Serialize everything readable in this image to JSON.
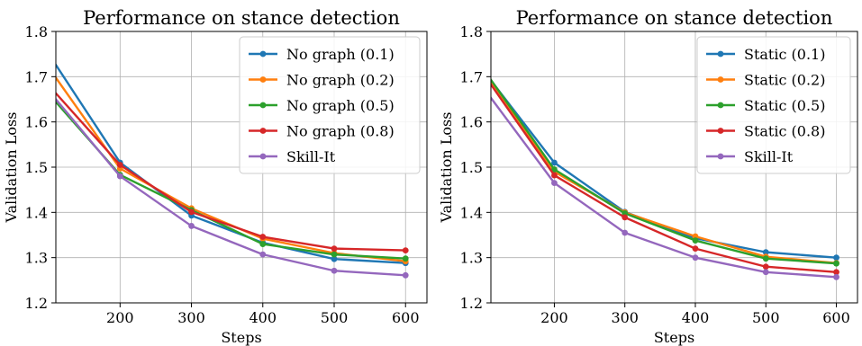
{
  "colors": {
    "blue": "#1f77b4",
    "orange": "#ff7f0e",
    "green": "#2ca02c",
    "red": "#d62728",
    "purple": "#9467bd"
  },
  "chart_data": [
    {
      "type": "line",
      "title": "Performance on stance detection",
      "xlabel": "Steps",
      "ylabel": "Validation Loss",
      "xlim": [
        110,
        630
      ],
      "ylim": [
        1.2,
        1.8
      ],
      "xticks": [
        200,
        300,
        400,
        500,
        600
      ],
      "yticks": [
        1.2,
        1.3,
        1.4,
        1.5,
        1.6,
        1.7,
        1.8
      ],
      "grid": true,
      "legend_position": "top-right",
      "x": [
        100,
        200,
        300,
        400,
        500,
        600
      ],
      "series": [
        {
          "name": "No graph (0.1)",
          "color": "#1f77b4",
          "values": [
            1.75,
            1.51,
            1.393,
            1.333,
            1.297,
            1.288
          ]
        },
        {
          "name": "No graph (0.2)",
          "color": "#ff7f0e",
          "values": [
            1.72,
            1.497,
            1.409,
            1.342,
            1.31,
            1.292
          ]
        },
        {
          "name": "No graph (0.5)",
          "color": "#2ca02c",
          "values": [
            1.662,
            1.483,
            1.405,
            1.33,
            1.307,
            1.298
          ]
        },
        {
          "name": "No graph (0.8)",
          "color": "#d62728",
          "values": [
            1.681,
            1.505,
            1.401,
            1.346,
            1.32,
            1.316
          ]
        },
        {
          "name": "Skill-It",
          "color": "#9467bd",
          "values": [
            1.669,
            1.48,
            1.37,
            1.307,
            1.271,
            1.261
          ]
        }
      ]
    },
    {
      "type": "line",
      "title": "Performance on stance detection",
      "xlabel": "Steps",
      "ylabel": "Validation Loss",
      "xlim": [
        110,
        630
      ],
      "ylim": [
        1.2,
        1.8
      ],
      "xticks": [
        200,
        300,
        400,
        500,
        600
      ],
      "yticks": [
        1.2,
        1.3,
        1.4,
        1.5,
        1.6,
        1.7,
        1.8
      ],
      "grid": true,
      "legend_position": "top-right",
      "x": [
        100,
        200,
        300,
        400,
        500,
        600
      ],
      "series": [
        {
          "name": "Static (0.1)",
          "color": "#1f77b4",
          "values": [
            1.712,
            1.51,
            1.401,
            1.343,
            1.312,
            1.3
          ]
        },
        {
          "name": "Static (0.2)",
          "color": "#ff7f0e",
          "values": [
            1.71,
            1.49,
            1.4,
            1.347,
            1.302,
            1.288
          ]
        },
        {
          "name": "Static (0.5)",
          "color": "#2ca02c",
          "values": [
            1.715,
            1.495,
            1.398,
            1.338,
            1.298,
            1.287
          ]
        },
        {
          "name": "Static (0.8)",
          "color": "#d62728",
          "values": [
            1.705,
            1.482,
            1.389,
            1.32,
            1.28,
            1.268
          ]
        },
        {
          "name": "Skill-It",
          "color": "#9467bd",
          "values": [
            1.674,
            1.465,
            1.355,
            1.3,
            1.268,
            1.257
          ]
        }
      ]
    }
  ]
}
